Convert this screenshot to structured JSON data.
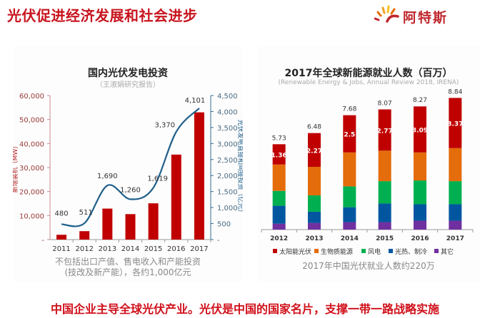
{
  "header": {
    "title": "光伏促进经济发展和社会进步",
    "logo_text": "阿特斯",
    "logo_icon": "sunrise-logo-icon"
  },
  "left_chart": {
    "note_line1": "不包括出口产值、售电收入和产能投资",
    "note_line2": "(技改及新产能），各约1,000亿元"
  },
  "right_chart": {
    "note": "2017年中国光伏就业人数约220万"
  },
  "footer": {
    "text": "中国企业主导全球光伏产业。光伏是中国的国家名片，支撑一带一路战略实施"
  },
  "colors": {
    "title_red": "#c8141e",
    "bar_red": "#c00000",
    "line_blue": "#1f5f8b",
    "solar": "#c00000",
    "bio": "#e46c0a",
    "wind": "#00b050",
    "thermal": "#0057a0",
    "other": "#7030a0"
  },
  "chart_data": [
    {
      "type": "bar+line",
      "title": "国内光伏发电投资",
      "subtitle": "（王淑娟研究报告）",
      "categories": [
        "2011",
        "2012",
        "2013",
        "2014",
        "2015",
        "2016",
        "2017"
      ],
      "series": [
        {
          "name": "新增装机（MW）",
          "type": "bar",
          "axis": "left",
          "values": [
            2000,
            3500,
            12900,
            10600,
            15100,
            35400,
            53000
          ]
        },
        {
          "name": "光伏发电直接和间接投资（亿元）",
          "type": "line",
          "axis": "right",
          "values": [
            480,
            511,
            1690,
            1260,
            1619,
            3370,
            4101
          ],
          "labels": [
            "480",
            "511",
            "1,690",
            "1,260",
            "1,619",
            "3,370",
            "4,101"
          ]
        }
      ],
      "ylabel": "新增装机（MW）",
      "ylabel_right": "光伏发电直接和间接投资（亿元）",
      "ylim": [
        0,
        60000
      ],
      "ylim_right": [
        0,
        4500
      ],
      "yticks": [
        "-",
        "10,000",
        "20,000",
        "30,000",
        "40,000",
        "50,000",
        "60,000"
      ],
      "yticks_right": [
        "-",
        "500",
        "1,000",
        "1,500",
        "2,000",
        "2,500",
        "3,000",
        "3,500",
        "4,000",
        "4,500"
      ],
      "grid": false
    },
    {
      "type": "stacked-bar",
      "title": "2017年全球新能源就业人数（百万）",
      "subtitle": "(Renewable Energy & Jobs, Annual Review 2018, IRENA)",
      "categories": [
        "2012",
        "2013",
        "2014",
        "2015",
        "2016",
        "2017"
      ],
      "totals": [
        "5.73",
        "6.48",
        "7.68",
        "8.07",
        "8.27",
        "8.84"
      ],
      "total_values": [
        5.73,
        6.48,
        7.68,
        8.07,
        8.27,
        8.84
      ],
      "series": [
        {
          "name": "其它",
          "color_key": "other",
          "values": [
            0.4,
            0.45,
            0.5,
            0.5,
            0.6,
            0.6
          ]
        },
        {
          "name": "光热、制冷",
          "color_key": "thermal",
          "values": [
            1.2,
            0.75,
            1.0,
            1.25,
            1.1,
            1.1
          ]
        },
        {
          "name": "风电",
          "color_key": "wind",
          "values": [
            1.0,
            1.1,
            1.4,
            1.5,
            1.6,
            1.55
          ]
        },
        {
          "name": "生物质能源",
          "color_key": "bio",
          "values": [
            1.77,
            1.91,
            2.28,
            2.05,
            1.88,
            2.22
          ]
        },
        {
          "name": "太阳能光伏",
          "color_key": "solar",
          "values": [
            1.36,
            2.27,
            2.5,
            2.77,
            3.09,
            3.37
          ],
          "labels": [
            "1.36",
            "2.27",
            "2.5",
            "2.77",
            "3.09",
            "3.37"
          ]
        }
      ],
      "legend_order": [
        "太阳能光伏",
        "生物质能源",
        "风电",
        "光热、制冷",
        "其它"
      ],
      "legend_colors": [
        "solar",
        "bio",
        "wind",
        "thermal",
        "other"
      ],
      "legend": "bottom",
      "ylim": [
        0,
        9
      ],
      "grid": false
    }
  ]
}
